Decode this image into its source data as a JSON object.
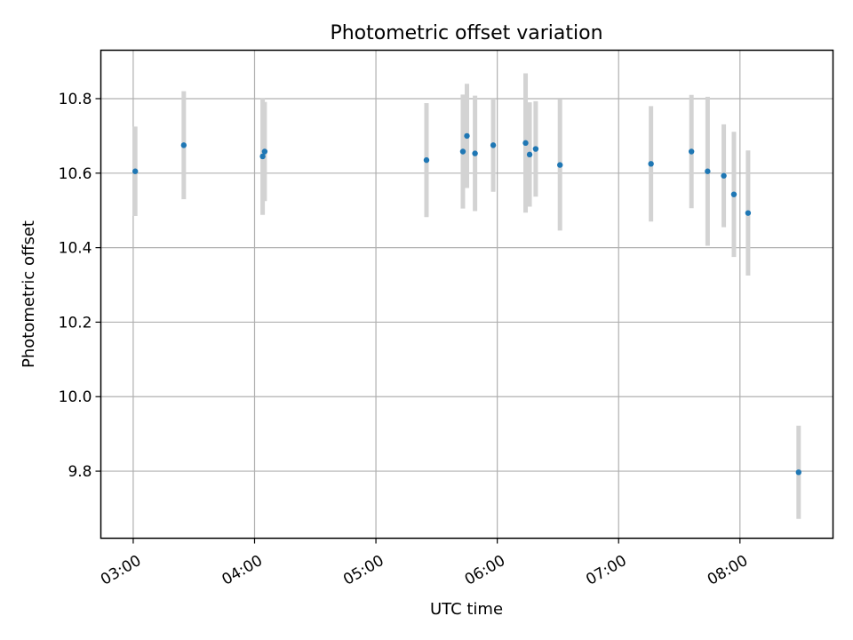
{
  "chart_data": {
    "type": "scatter",
    "title": "Photometric offset variation",
    "xlabel": "UTC time",
    "ylabel": "Photometric offset",
    "x_axis_type": "time",
    "xlim": [
      "02:44",
      "08:46"
    ],
    "ylim": [
      9.62,
      10.93
    ],
    "x_ticks": [
      "03:00",
      "04:00",
      "05:00",
      "06:00",
      "07:00",
      "08:00"
    ],
    "y_ticks": [
      9.8,
      10.0,
      10.2,
      10.4,
      10.6,
      10.8
    ],
    "grid": true,
    "legend": "none",
    "marker_color": "#1f77b4",
    "errorbar_color": "#d3d3d3",
    "series": [
      {
        "points": [
          {
            "x": "03:01",
            "y": 10.605,
            "yerr": 0.12
          },
          {
            "x": "03:25",
            "y": 10.675,
            "yerr": 0.145
          },
          {
            "x": "04:04",
            "y": 10.645,
            "yerr": 0.157
          },
          {
            "x": "04:05",
            "y": 10.658,
            "yerr": 0.133
          },
          {
            "x": "05:25",
            "y": 10.635,
            "yerr": 0.153
          },
          {
            "x": "05:43",
            "y": 10.658,
            "yerr": 0.153
          },
          {
            "x": "05:45",
            "y": 10.7,
            "yerr": 0.14
          },
          {
            "x": "05:49",
            "y": 10.653,
            "yerr": 0.155
          },
          {
            "x": "05:58",
            "y": 10.675,
            "yerr": 0.125
          },
          {
            "x": "06:14",
            "y": 10.681,
            "yerr": 0.187
          },
          {
            "x": "06:16",
            "y": 10.65,
            "yerr": 0.14
          },
          {
            "x": "06:19",
            "y": 10.665,
            "yerr": 0.128
          },
          {
            "x": "06:31",
            "y": 10.622,
            "yerr": 0.176
          },
          {
            "x": "07:16",
            "y": 10.625,
            "yerr": 0.155
          },
          {
            "x": "07:36",
            "y": 10.658,
            "yerr": 0.152
          },
          {
            "x": "07:44",
            "y": 10.605,
            "yerr": 0.2
          },
          {
            "x": "07:52",
            "y": 10.593,
            "yerr": 0.138
          },
          {
            "x": "07:57",
            "y": 10.543,
            "yerr": 0.168
          },
          {
            "x": "08:04",
            "y": 10.493,
            "yerr": 0.168
          },
          {
            "x": "08:29",
            "y": 9.797,
            "yerr": 0.125
          }
        ]
      }
    ]
  }
}
